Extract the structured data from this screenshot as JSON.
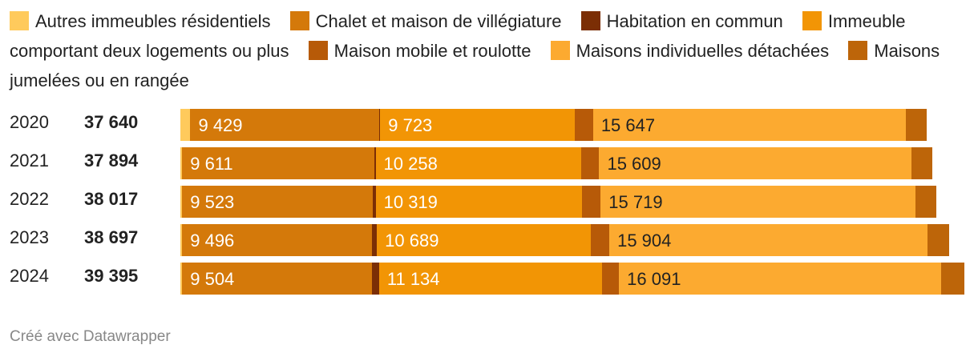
{
  "chart_data": {
    "type": "bar",
    "orientation": "horizontal",
    "stacked": true,
    "legend_position": "top",
    "series": [
      {
        "name": "Autres immeubles résidentiels",
        "color": "#ffca5c",
        "values": [
          500,
          90,
          90,
          90,
          90
        ]
      },
      {
        "name": "Chalet et maison de villégiature",
        "color": "#d4790a",
        "values": [
          9429,
          9611,
          9523,
          9496,
          9504
        ]
      },
      {
        "name": "Habitation en commun",
        "color": "#7b2e05",
        "values": [
          60,
          60,
          150,
          240,
          340
        ]
      },
      {
        "name": "Immeuble comportant deux logements ou plus",
        "color": "#f29505",
        "values": [
          9723,
          10258,
          10319,
          10689,
          11134
        ]
      },
      {
        "name": "Maison mobile et roulotte",
        "color": "#b75a08",
        "values": [
          920,
          920,
          930,
          930,
          860
        ]
      },
      {
        "name": "Maisons individuelles détachées",
        "color": "#fcaa30",
        "values": [
          15647,
          15609,
          15719,
          15904,
          16091
        ]
      },
      {
        "name": "Maisons jumelées ou en rangée",
        "color": "#bd6509",
        "values": [
          1020,
          1030,
          1070,
          1090,
          1180
        ]
      }
    ],
    "rows": [
      {
        "year": "2020",
        "total": "37 640",
        "labels": [
          "9 429",
          "9 723",
          "15 647"
        ]
      },
      {
        "year": "2021",
        "total": "37 894",
        "labels": [
          "9 611",
          "10 258",
          "15 609"
        ]
      },
      {
        "year": "2022",
        "total": "38 017",
        "labels": [
          "9 523",
          "10 319",
          "15 719"
        ]
      },
      {
        "year": "2023",
        "total": "38 697",
        "labels": [
          "9 496",
          "10 689",
          "15 904"
        ]
      },
      {
        "year": "2024",
        "total": "39 395",
        "labels": [
          "9 504",
          "11 134",
          "16 091"
        ]
      }
    ],
    "labeled_series": [
      1,
      3,
      5
    ],
    "xlim": [
      0,
      39395
    ]
  },
  "footer": "Créé avec Datawrapper"
}
